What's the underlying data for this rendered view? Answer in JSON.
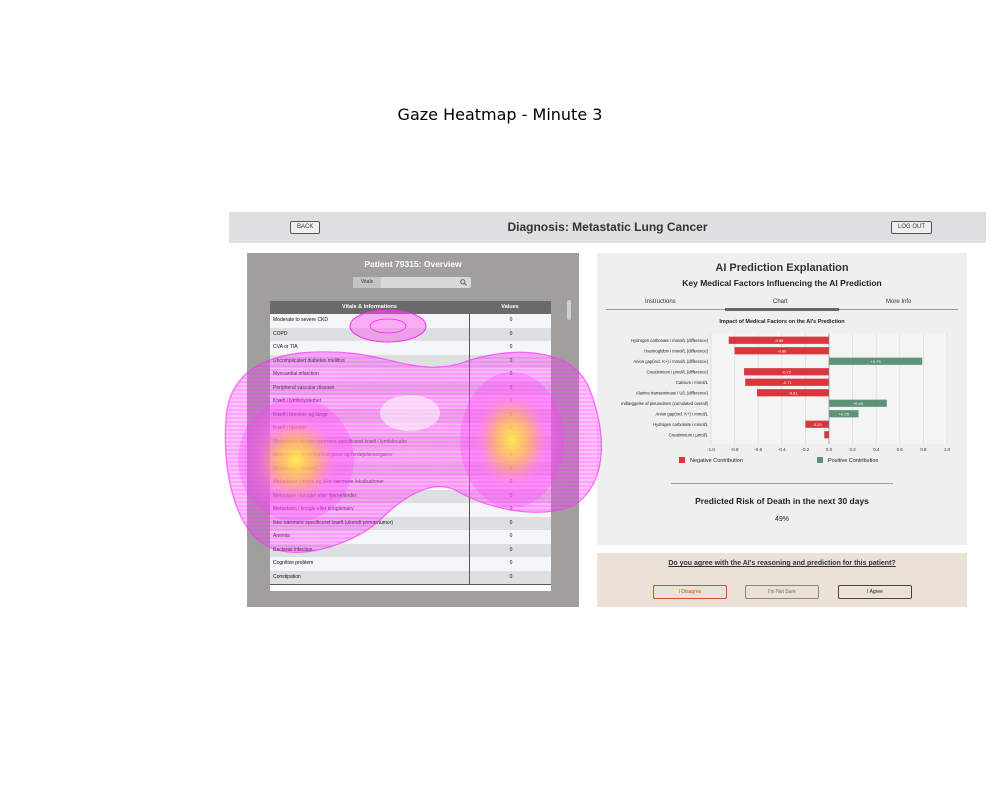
{
  "figure_title": "Gaze Heatmap - Minute 3",
  "header": {
    "back_label": "BACK",
    "title": "Diagnosis: Metastatic Lung Cancer",
    "logout_label": "LOG OUT"
  },
  "patient_panel": {
    "title": "Patient 79315: Overview",
    "search_tab_label": "Vitals",
    "columns": [
      "Vitals & Informations",
      "Values"
    ],
    "rows": [
      {
        "label": "Moderate to severe CKD",
        "value": "0"
      },
      {
        "label": "COPD",
        "value": "0"
      },
      {
        "label": "CVA or TIA",
        "value": "0"
      },
      {
        "label": "Uncomplicated diabetes mellitus",
        "value": "0"
      },
      {
        "label": "Myocardial infarction",
        "value": "0"
      },
      {
        "label": "Peripheral vascular disease",
        "value": "0"
      },
      {
        "label": "Kræft i lymfesystemet",
        "value": "0"
      },
      {
        "label": "Kræft i bronkier og lunge",
        "value": "1"
      },
      {
        "label": "Kræft i hjernen",
        "value": "0"
      },
      {
        "label": "Metastaser og ikke nærmere specificeret kræft i lymfeknuder",
        "value": "0"
      },
      {
        "label": "Metastaser i åndedrætsorganer og fordøjelsesorganer",
        "value": "0"
      },
      {
        "label": "Metastase i hjernen",
        "value": "0"
      },
      {
        "label": "Metastaser i andre og ikke nærmere lokalisationer",
        "value": "0"
      },
      {
        "label": "Metastase i knogler eller hjernehinder",
        "value": "0"
      },
      {
        "label": "Metastasis i knogle eller knoglemarv",
        "value": "0"
      },
      {
        "label": "Ikke nærmere specificeret kræft (ukendt primærtumor)",
        "value": "0"
      },
      {
        "label": "Anemia",
        "value": "0"
      },
      {
        "label": "Bacterial infection",
        "value": "0"
      },
      {
        "label": "Cognitive problem",
        "value": "0"
      },
      {
        "label": "Constipation",
        "value": "0"
      }
    ]
  },
  "ai_panel": {
    "title": "AI Prediction Explanation",
    "subtitle": "Key Medical Factors Influencing the AI Prediction",
    "tabs": [
      "Instructions",
      "Chart",
      "More Info"
    ],
    "active_tab": "Chart",
    "legend_negative": "Negative Contribution",
    "legend_positive": "Positive Contribution",
    "risk_title": "Predicted Risk of Death in the next 30 days",
    "risk_value": "49%"
  },
  "chart_data": {
    "type": "bar",
    "orientation": "horizontal",
    "title": "Impact of Medical Factors on the AI's Prediction",
    "xlim": [
      -1.0,
      1.0
    ],
    "xticks": [
      "-1.0",
      "-0.8",
      "-0.6",
      "-0.4",
      "-0.2",
      "0.0",
      "0.2",
      "0.4",
      "0.6",
      "0.8",
      "1.0"
    ],
    "grid": true,
    "categories": [
      "Hydrogen carbonate i mmol/L (difference)",
      "Haemoglobin i mmol/L (difference)",
      "Anion gap(incl. K+) i mmol/L (difference)",
      "Creatininium i µmol/L (difference)",
      "Calcium i mmol/L",
      "Alanine transaminase i U/L (difference)",
      "Indlæggelse af pleuradræn (cumulated overall)",
      "Anion gap(incl. K+) i mmol/L",
      "Hydrogen carbonate i mmol/L",
      "Creatininium i µmol/L"
    ],
    "values": [
      -0.85,
      -0.8,
      0.79,
      -0.72,
      -0.71,
      -0.61,
      0.49,
      0.25,
      -0.2,
      -0.04
    ],
    "data_labels": [
      "-0.85",
      "-0.80",
      "+0.79",
      "-0.72",
      "-0.71",
      "-0.61",
      "+0.49",
      "+0.25",
      "-0.20",
      ""
    ],
    "colors": {
      "negative": "#d9363e",
      "positive": "#5f9378"
    }
  },
  "agree_panel": {
    "question": "Do you agree with the AI's reasoning and prediction for this patient?",
    "buttons": [
      "I Disagree",
      "I'm Not Sure",
      "I Agree"
    ]
  },
  "colors": {
    "topbar": "#dde0e0",
    "left_panel": "#a09f9e",
    "agree_panel": "#ece1d6",
    "heatmap_low": "#ff33ff",
    "heatmap_high": "#ffee44"
  }
}
